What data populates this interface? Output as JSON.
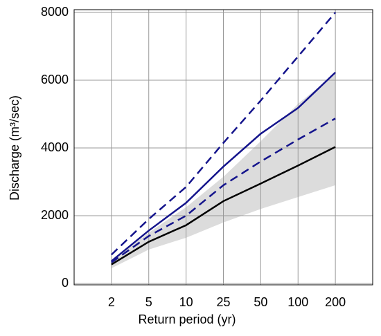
{
  "chart_data": {
    "type": "line",
    "xlabel": "Return period (yr)",
    "ylabel": "Discharge (m³/sec)",
    "categories": [
      "2",
      "5",
      "10",
      "25",
      "50",
      "100",
      "200"
    ],
    "ylim": [
      0,
      8000
    ],
    "yticks": [
      0,
      2000,
      4000,
      6000,
      8000
    ],
    "grid": true,
    "band": {
      "color": "#dcdcdc",
      "lower": [
        450,
        1000,
        1350,
        1800,
        2200,
        2550,
        2900
      ],
      "upper": [
        650,
        1500,
        2250,
        3150,
        4200,
        5300,
        6200
      ]
    },
    "series": [
      {
        "color": "#000000",
        "style": "solid",
        "values": [
          560,
          1230,
          1720,
          2430,
          2950,
          3480,
          4030
        ]
      },
      {
        "color": "#14148c",
        "style": "solid",
        "values": [
          660,
          1560,
          2380,
          3450,
          4420,
          5180,
          6230
        ]
      },
      {
        "color": "#14148c",
        "style": "dashed",
        "values": [
          850,
          1900,
          2850,
          4150,
          5400,
          6700,
          8000
        ]
      },
      {
        "color": "#14148c",
        "style": "dashed",
        "values": [
          620,
          1400,
          2000,
          2900,
          3600,
          4250,
          4870
        ]
      }
    ]
  }
}
